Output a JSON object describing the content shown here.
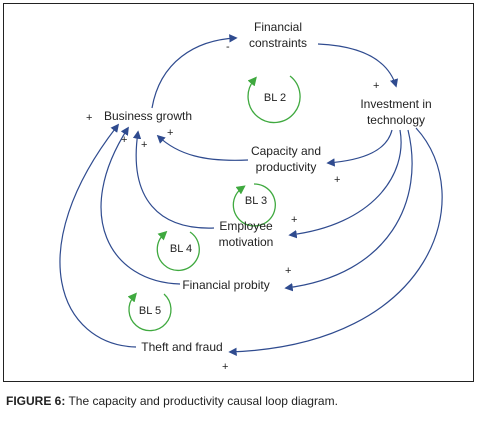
{
  "nodes": {
    "financial_constraints_1": "Financial",
    "financial_constraints_2": "constraints",
    "investment_1": "Investment in",
    "investment_2": "technology",
    "business_growth": "Business growth",
    "capacity_1": "Capacity and",
    "capacity_2": "productivity",
    "employee_1": "Employee",
    "employee_2": "motivation",
    "financial_probity": "Financial probity",
    "theft_fraud": "Theft and fraud"
  },
  "loops": {
    "bl2": "BL 2",
    "bl3": "BL 3",
    "bl4": "BL 4",
    "bl5": "BL 5"
  },
  "signs": {
    "minus_fc": "-",
    "plus_inv": "+",
    "plus_bg_left": "+",
    "plus_bg_a": "+",
    "plus_bg_b": "+",
    "plus_bg_c": "+",
    "plus_cap": "+",
    "plus_emp": "+",
    "plus_fp": "+",
    "plus_tf": "+"
  },
  "caption": {
    "label": "FIGURE 6:",
    "text": " The capacity and productivity causal loop diagram."
  },
  "colors": {
    "arrows": "#2f4b8f",
    "loop_markers": "#3fa93f",
    "text": "#222222"
  }
}
